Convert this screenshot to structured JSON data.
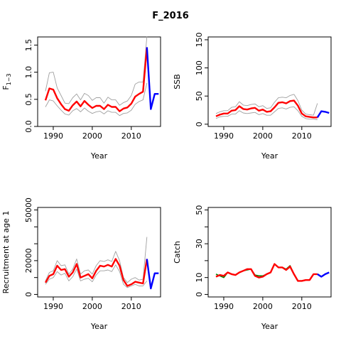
{
  "title": "F_2016",
  "colors": {
    "estimate": "#ff0000",
    "projection": "#0000ff",
    "bounds": "#a0a0a0",
    "observed": "#008000"
  },
  "chart_data": [
    {
      "type": "line",
      "ylabel_main": "F",
      "ylabel_sub": "1−3",
      "xlabel": "Year",
      "xlim": [
        1986,
        2017.5
      ],
      "ylim": [
        0,
        1.65
      ],
      "xticks": [
        1990,
        2000,
        2010
      ],
      "yticks": [
        0.0,
        0.5,
        1.0,
        1.5
      ],
      "ytick_labels": [
        "0.0",
        "0.5",
        "1.0",
        "1.5"
      ],
      "series": [
        {
          "role": "upper",
          "x": [
            1988,
            1989,
            1990,
            1991,
            1992,
            1993,
            1994,
            1995,
            1996,
            1997,
            1998,
            1999,
            2000,
            2001,
            2002,
            2003,
            2004,
            2005,
            2006,
            2007,
            2008,
            2009,
            2010,
            2011,
            2012,
            2013,
            2014
          ],
          "values": [
            0.65,
            0.99,
            1.0,
            0.71,
            0.57,
            0.43,
            0.42,
            0.53,
            0.6,
            0.49,
            0.61,
            0.57,
            0.48,
            0.53,
            0.53,
            0.43,
            0.54,
            0.49,
            0.49,
            0.39,
            0.44,
            0.47,
            0.57,
            0.78,
            0.82,
            0.82,
            1.66
          ]
        },
        {
          "role": "lower",
          "x": [
            1988,
            1989,
            1990,
            1991,
            1992,
            1993,
            1994,
            1995,
            1996,
            1997,
            1998,
            1999,
            2000,
            2001,
            2002,
            2003,
            2004,
            2005,
            2006,
            2007,
            2008,
            2009,
            2010,
            2011,
            2012,
            2013,
            2014
          ],
          "values": [
            0.36,
            0.49,
            0.47,
            0.38,
            0.3,
            0.23,
            0.21,
            0.29,
            0.33,
            0.27,
            0.34,
            0.28,
            0.24,
            0.27,
            0.28,
            0.23,
            0.29,
            0.26,
            0.26,
            0.2,
            0.24,
            0.25,
            0.3,
            0.41,
            0.46,
            0.49,
            0.8
          ]
        },
        {
          "role": "estimate",
          "x": [
            1988,
            1989,
            1990,
            1991,
            1992,
            1993,
            1994,
            1995,
            1996,
            1997,
            1998,
            1999,
            2000,
            2001,
            2002,
            2003,
            2004,
            2005,
            2006,
            2007,
            2008,
            2009,
            2010,
            2011,
            2012,
            2013,
            2014
          ],
          "values": [
            0.48,
            0.7,
            0.68,
            0.52,
            0.41,
            0.32,
            0.29,
            0.39,
            0.46,
            0.37,
            0.47,
            0.4,
            0.34,
            0.38,
            0.38,
            0.32,
            0.4,
            0.36,
            0.36,
            0.28,
            0.33,
            0.35,
            0.42,
            0.55,
            0.6,
            0.64,
            1.46
          ]
        },
        {
          "role": "projection",
          "x": [
            2014,
            2015,
            2016,
            2017
          ],
          "values": [
            1.46,
            0.32,
            0.6,
            0.6
          ]
        }
      ]
    },
    {
      "type": "line",
      "ylabel": "SSB",
      "xlabel": "Year",
      "xlim": [
        1986,
        2017.5
      ],
      "ylim": [
        -4,
        155
      ],
      "xticks": [
        1990,
        2000,
        2010
      ],
      "yticks": [
        0,
        50,
        100,
        150
      ],
      "ytick_labels": [
        "0",
        "50",
        "100",
        "150"
      ],
      "series": [
        {
          "role": "upper",
          "x": [
            1988,
            1989,
            1990,
            1991,
            1992,
            1993,
            1994,
            1995,
            1996,
            1997,
            1998,
            1999,
            2000,
            2001,
            2002,
            2003,
            2004,
            2005,
            2006,
            2007,
            2008,
            2009,
            2010,
            2011,
            2012,
            2013,
            2014
          ],
          "values": [
            19,
            22,
            24,
            24,
            30,
            31,
            40,
            34,
            33,
            35,
            36,
            31,
            33,
            28,
            29,
            39,
            47,
            48,
            47,
            51,
            53,
            42,
            25,
            18,
            17,
            16,
            37
          ]
        },
        {
          "role": "lower",
          "x": [
            1988,
            1989,
            1990,
            1991,
            1992,
            1993,
            1994,
            1995,
            1996,
            1997,
            1998,
            1999,
            2000,
            2001,
            2002,
            2003,
            2004,
            2005,
            2006,
            2007,
            2008,
            2009,
            2010,
            2011,
            2012,
            2013,
            2014
          ],
          "values": [
            10,
            13,
            14,
            14,
            18,
            18,
            24,
            20,
            19,
            20,
            21,
            17,
            19,
            16,
            16,
            22,
            28,
            29,
            27,
            30,
            31,
            24,
            14,
            10,
            9,
            9,
            8
          ]
        },
        {
          "role": "estimate",
          "x": [
            1988,
            1989,
            1990,
            1991,
            1992,
            1993,
            1994,
            1995,
            1996,
            1997,
            1998,
            1999,
            2000,
            2001,
            2002,
            2003,
            2004,
            2005,
            2006,
            2007,
            2008,
            2009,
            2010,
            2011,
            2012,
            2013,
            2014
          ],
          "values": [
            14,
            17,
            19,
            19,
            24,
            25,
            32,
            27,
            26,
            28,
            29,
            24,
            26,
            22,
            23,
            30,
            38,
            39,
            37,
            41,
            42,
            33,
            19,
            14,
            13,
            12,
            12
          ]
        },
        {
          "role": "projection",
          "x": [
            2014,
            2015,
            2016,
            2017
          ],
          "values": [
            12,
            23,
            22,
            20
          ]
        }
      ]
    },
    {
      "type": "line",
      "ylabel": "Recruitment at age 1",
      "xlabel": "Year",
      "xlim": [
        1986,
        2017.5
      ],
      "ylim": [
        -1500,
        51500
      ],
      "xticks": [
        1990,
        2000,
        2010
      ],
      "yticks": [
        0,
        10000,
        20000,
        30000,
        40000,
        50000
      ],
      "ytick_labels": [
        "0",
        "",
        "20000",
        "",
        "",
        "50000"
      ],
      "series": [
        {
          "role": "upper",
          "x": [
            1988,
            1989,
            1990,
            1991,
            1992,
            1993,
            1994,
            1995,
            1996,
            1997,
            1998,
            1999,
            2000,
            2001,
            2002,
            2003,
            2004,
            2005,
            2006,
            2007,
            2008,
            2009,
            2010,
            2011,
            2012,
            2013,
            2014
          ],
          "values": [
            8000,
            13000,
            14000,
            20000,
            17000,
            17500,
            12000,
            15000,
            21000,
            12000,
            14000,
            14500,
            12000,
            17000,
            20000,
            19500,
            20500,
            19500,
            25500,
            20000,
            10000,
            7000,
            9000,
            10000,
            8500,
            9000,
            34000
          ]
        },
        {
          "role": "lower",
          "x": [
            1988,
            1989,
            1990,
            1991,
            1992,
            1993,
            1994,
            1995,
            1996,
            1997,
            1998,
            1999,
            2000,
            2001,
            2002,
            2003,
            2004,
            2005,
            2006,
            2007,
            2008,
            2009,
            2010,
            2011,
            2012,
            2013,
            2014
          ],
          "values": [
            6000,
            9000,
            10000,
            13500,
            11500,
            12500,
            8000,
            10500,
            15000,
            8000,
            9000,
            9500,
            7500,
            11500,
            14000,
            14000,
            14500,
            13500,
            17500,
            13500,
            6000,
            4000,
            5000,
            6000,
            5000,
            5000,
            8000
          ]
        },
        {
          "role": "estimate",
          "x": [
            1988,
            1989,
            1990,
            1991,
            1992,
            1993,
            1994,
            1995,
            1996,
            1997,
            1998,
            1999,
            2000,
            2001,
            2002,
            2003,
            2004,
            2005,
            2006,
            2007,
            2008,
            2009,
            2010,
            2011,
            2012,
            2013,
            2014
          ],
          "values": [
            7000,
            11000,
            12000,
            17000,
            14500,
            15000,
            10500,
            13000,
            18000,
            10000,
            11000,
            12000,
            9500,
            14000,
            17000,
            16500,
            17500,
            16500,
            21000,
            17000,
            8500,
            5000,
            6000,
            7500,
            7000,
            6500,
            21000
          ]
        },
        {
          "role": "projection",
          "x": [
            2014,
            2015,
            2016,
            2017
          ],
          "values": [
            21000,
            3500,
            12500,
            12500
          ]
        }
      ]
    },
    {
      "type": "line",
      "ylabel": "Catch",
      "xlabel": "Year",
      "xlim": [
        1986,
        2017.5
      ],
      "ylim": [
        -1.5,
        51.5
      ],
      "xticks": [
        1990,
        2000,
        2010
      ],
      "yticks": [
        0,
        10,
        20,
        30,
        40,
        50
      ],
      "ytick_labels": [
        "0",
        "10",
        "",
        "30",
        "",
        "50"
      ],
      "series": [
        {
          "role": "observed",
          "x": [
            1988,
            1989,
            1990,
            1991,
            1992,
            1993,
            1994,
            1995,
            1996,
            1997,
            1998,
            1999,
            2000,
            2001,
            2002,
            2003,
            2004,
            2005,
            2006,
            2007,
            2008,
            2009,
            2010,
            2011,
            2012,
            2013,
            2014
          ],
          "values": [
            12,
            11,
            10,
            13,
            12,
            11.5,
            13,
            14,
            14.5,
            15,
            11.5,
            11,
            11,
            12,
            13,
            18,
            16,
            16,
            15,
            17,
            12,
            8,
            8,
            8.5,
            8.5,
            12,
            12
          ]
        },
        {
          "role": "estimate",
          "x": [
            1988,
            1989,
            1990,
            1991,
            1992,
            1993,
            1994,
            1995,
            1996,
            1997,
            1998,
            1999,
            2000,
            2001,
            2002,
            2003,
            2004,
            2005,
            2006,
            2007,
            2008,
            2009,
            2010,
            2011,
            2012,
            2013,
            2014
          ],
          "values": [
            10.5,
            11.5,
            11,
            13,
            12,
            11.5,
            13,
            14,
            15,
            15,
            11,
            10,
            10.5,
            12,
            13,
            18,
            16,
            16,
            14.5,
            16.5,
            12,
            8,
            8,
            8.5,
            8.5,
            12,
            12
          ]
        },
        {
          "role": "projection",
          "x": [
            2014,
            2015,
            2016,
            2017
          ],
          "values": [
            12,
            10.5,
            12,
            13
          ]
        }
      ]
    }
  ]
}
